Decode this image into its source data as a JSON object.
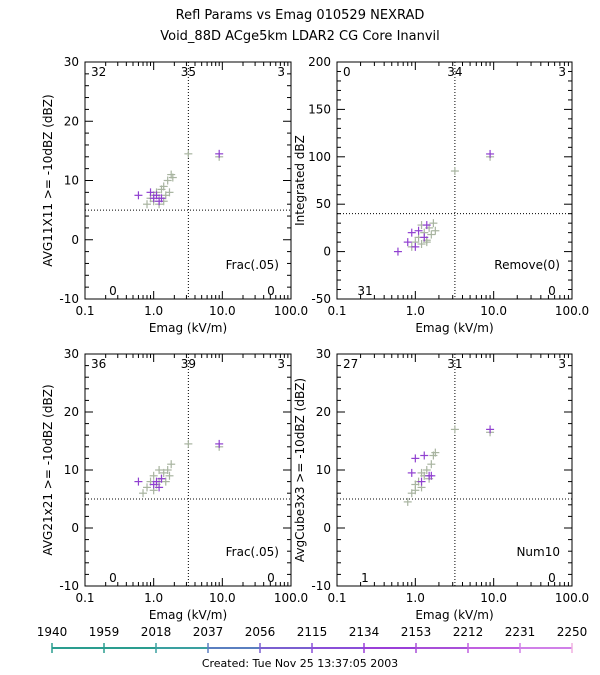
{
  "header": {
    "title": "Refl Params vs Emag   010529  NEXRAD",
    "subtitle": "Void_88D ACge5km LDAR2 CG Core Inanvil"
  },
  "footer": {
    "created": "Created: Tue Nov 25 13:37:05 2003"
  },
  "colorbar": {
    "labels": [
      "1940",
      "1959",
      "2018",
      "2037",
      "2056",
      "2115",
      "2134",
      "2153",
      "2212",
      "2231",
      "2250"
    ],
    "colors": [
      "#2a9d8f",
      "#2a9d8f",
      "#3aa0a0",
      "#5a7fc0",
      "#7a5fd0",
      "#8a4fd8",
      "#9a3fd8",
      "#a84fd8",
      "#c060e0",
      "#d080e8",
      "#f0b0e0"
    ]
  },
  "chart_data": [
    {
      "type": "scatter",
      "xlabel": "Emag (kV/m)",
      "ylabel": "AVG11X11 >= -10dBZ (dBZ)",
      "xscale": "log",
      "xlim": [
        0.1,
        100.0
      ],
      "ylim": [
        -10,
        30
      ],
      "xticks": [
        "0.1",
        "1.0",
        "10.0",
        "100.0"
      ],
      "yticks": [
        "-10",
        "0",
        "10",
        "20",
        "30"
      ],
      "xthreshold": 3.2,
      "ythreshold": 5,
      "quadrant_counts": {
        "top_left": "32",
        "top_mid": "35",
        "top_right": "3",
        "bottom_left": "0",
        "bottom_right": "0"
      },
      "annotation": "Frac(.05)",
      "series": [
        {
          "color": "#a8b4a0",
          "points": [
            [
              0.8,
              6
            ],
            [
              0.9,
              7
            ],
            [
              1.0,
              6.5
            ],
            [
              1.1,
              8
            ],
            [
              1.2,
              7
            ],
            [
              1.3,
              8.5
            ],
            [
              1.4,
              9
            ],
            [
              1.5,
              7.5
            ],
            [
              1.6,
              10
            ],
            [
              1.7,
              8
            ],
            [
              1.8,
              11
            ],
            [
              1.9,
              10.5
            ],
            [
              1.2,
              6
            ],
            [
              1.0,
              7.5
            ],
            [
              1.4,
              6.5
            ],
            [
              3.2,
              14.5
            ],
            [
              9.0,
              14
            ]
          ]
        },
        {
          "color": "#9040d0",
          "points": [
            [
              0.6,
              7.5
            ],
            [
              0.9,
              8
            ],
            [
              1.0,
              7
            ],
            [
              1.1,
              7.5
            ],
            [
              1.2,
              6.5
            ],
            [
              1.3,
              7
            ],
            [
              9.0,
              14.5
            ]
          ]
        }
      ]
    },
    {
      "type": "scatter",
      "xlabel": "Emag (kV/m)",
      "ylabel": "Integrated dBZ",
      "xscale": "log",
      "xlim": [
        0.1,
        100.0
      ],
      "ylim": [
        -50,
        200
      ],
      "xticks": [
        "0.1",
        "1.0",
        "10.0",
        "100.0"
      ],
      "yticks": [
        "-50",
        "0",
        "50",
        "100",
        "150",
        "200"
      ],
      "xthreshold": 3.2,
      "ythreshold": 40,
      "quadrant_counts": {
        "top_left": "0",
        "top_mid": "34",
        "top_right": "3",
        "bottom_left": "31",
        "bottom_right": "0"
      },
      "annotation": "Remove(0)",
      "series": [
        {
          "color": "#a8b4a0",
          "points": [
            [
              0.9,
              5
            ],
            [
              1.0,
              10
            ],
            [
              1.1,
              15
            ],
            [
              1.2,
              8
            ],
            [
              1.3,
              20
            ],
            [
              1.4,
              12
            ],
            [
              1.5,
              25
            ],
            [
              1.6,
              18
            ],
            [
              1.7,
              30
            ],
            [
              1.8,
              22
            ],
            [
              1.2,
              28
            ],
            [
              1.4,
              10
            ],
            [
              3.2,
              85
            ],
            [
              9.0,
              100
            ]
          ]
        },
        {
          "color": "#9040d0",
          "points": [
            [
              0.6,
              0
            ],
            [
              0.8,
              10
            ],
            [
              0.9,
              20
            ],
            [
              1.0,
              5
            ],
            [
              1.1,
              22
            ],
            [
              1.3,
              15
            ],
            [
              1.4,
              28
            ],
            [
              9.0,
              103
            ]
          ]
        }
      ]
    },
    {
      "type": "scatter",
      "xlabel": "Emag (kV/m)",
      "ylabel": "AVG21x21 >= -10dBZ (dBZ)",
      "xscale": "log",
      "xlim": [
        0.1,
        100.0
      ],
      "ylim": [
        -10,
        30
      ],
      "xticks": [
        "0.1",
        "1.0",
        "10.0",
        "100.0"
      ],
      "yticks": [
        "-10",
        "0",
        "10",
        "20",
        "30"
      ],
      "xthreshold": 3.2,
      "ythreshold": 5,
      "quadrant_counts": {
        "top_left": "36",
        "top_mid": "39",
        "top_right": "3",
        "bottom_left": "0",
        "bottom_right": "0"
      },
      "annotation": "Frac(.05)",
      "series": [
        {
          "color": "#a8b4a0",
          "points": [
            [
              0.7,
              6
            ],
            [
              0.8,
              7
            ],
            [
              0.9,
              8
            ],
            [
              1.0,
              9
            ],
            [
              1.1,
              7.5
            ],
            [
              1.2,
              10
            ],
            [
              1.3,
              8.5
            ],
            [
              1.4,
              9.5
            ],
            [
              1.5,
              8
            ],
            [
              1.6,
              10
            ],
            [
              1.7,
              9
            ],
            [
              1.8,
              11
            ],
            [
              1.0,
              6.5
            ],
            [
              1.2,
              8
            ],
            [
              3.2,
              14.5
            ],
            [
              9.0,
              14
            ]
          ]
        },
        {
          "color": "#9040d0",
          "points": [
            [
              0.6,
              8
            ],
            [
              1.0,
              7.5
            ],
            [
              1.1,
              8
            ],
            [
              1.2,
              7
            ],
            [
              1.3,
              8.5
            ],
            [
              9.0,
              14.5
            ]
          ]
        }
      ]
    },
    {
      "type": "scatter",
      "xlabel": "Emag (kV/m)",
      "ylabel": "AvgCube3x3 >= -10dBZ (dBZ)",
      "xscale": "log",
      "xlim": [
        0.1,
        100.0
      ],
      "ylim": [
        -10,
        30
      ],
      "xticks": [
        "0.1",
        "1.0",
        "10.0",
        "100.0"
      ],
      "yticks": [
        "-10",
        "0",
        "10",
        "20",
        "30"
      ],
      "xthreshold": 3.2,
      "ythreshold": 5,
      "quadrant_counts": {
        "top_left": "27",
        "top_mid": "31",
        "top_right": "3",
        "bottom_left": "1",
        "bottom_right": "0"
      },
      "annotation": "Num10",
      "series": [
        {
          "color": "#a8b4a0",
          "points": [
            [
              0.8,
              4.5
            ],
            [
              0.9,
              6
            ],
            [
              1.0,
              7.5
            ],
            [
              1.1,
              8
            ],
            [
              1.2,
              7
            ],
            [
              1.3,
              9
            ],
            [
              1.4,
              10
            ],
            [
              1.5,
              8.5
            ],
            [
              1.6,
              11
            ],
            [
              1.7,
              12.5
            ],
            [
              1.8,
              13
            ],
            [
              1.0,
              6.5
            ],
            [
              1.2,
              9.5
            ],
            [
              3.2,
              17
            ],
            [
              9.0,
              16.5
            ]
          ]
        },
        {
          "color": "#9040d0",
          "points": [
            [
              0.9,
              9.5
            ],
            [
              1.0,
              12
            ],
            [
              1.2,
              8
            ],
            [
              1.3,
              12.5
            ],
            [
              1.5,
              9
            ],
            [
              1.6,
              9
            ],
            [
              9.0,
              17
            ]
          ]
        }
      ]
    }
  ]
}
